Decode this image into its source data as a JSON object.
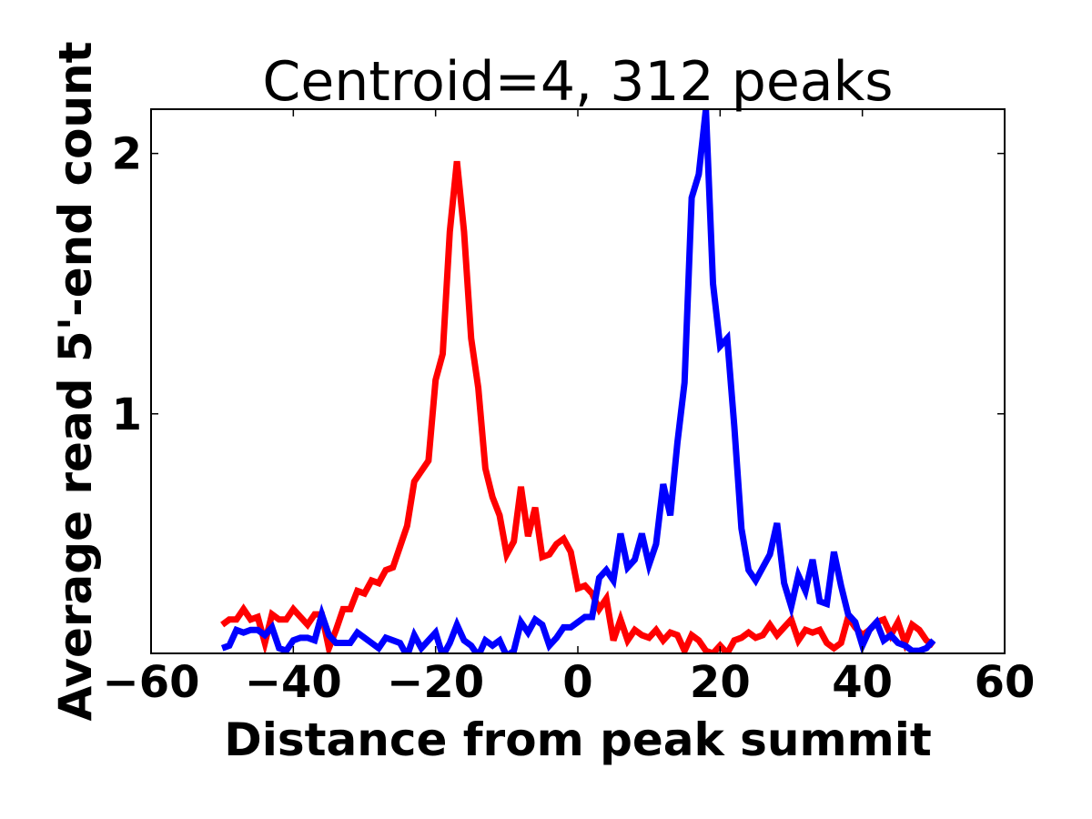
{
  "chart_data": {
    "type": "line",
    "title": "Centroid=4, 312 peaks",
    "xlabel": "Distance from peak summit",
    "ylabel": "Average read 5'-end count",
    "xlim": [
      -60,
      60
    ],
    "ylim": [
      0.08,
      2.17
    ],
    "x_ticks": [
      -60,
      -40,
      -20,
      0,
      20,
      40,
      60
    ],
    "x_tick_labels": [
      "−60",
      "−40",
      "−20",
      "0",
      "20",
      "40",
      "60"
    ],
    "y_ticks": [
      1,
      2
    ],
    "y_tick_labels": [
      "1",
      "2"
    ],
    "grid": false,
    "legend": "none",
    "x": [
      -50,
      -49,
      -48,
      -47,
      -46,
      -45,
      -44,
      -43,
      -42,
      -41,
      -40,
      -39,
      -38,
      -37,
      -36,
      -35,
      -34,
      -33,
      -32,
      -31,
      -30,
      -29,
      -28,
      -27,
      -26,
      -25,
      -24,
      -23,
      -22,
      -21,
      -20,
      -19,
      -18,
      -17,
      -16,
      -15,
      -14,
      -13,
      -12,
      -11,
      -10,
      -9,
      -8,
      -7,
      -6,
      -5,
      -4,
      -3,
      -2,
      -1,
      0,
      1,
      2,
      3,
      4,
      5,
      6,
      7,
      8,
      9,
      10,
      11,
      12,
      13,
      14,
      15,
      16,
      17,
      18,
      19,
      20,
      21,
      22,
      23,
      24,
      25,
      26,
      27,
      28,
      29,
      30,
      31,
      32,
      33,
      34,
      35,
      36,
      37,
      38,
      39,
      40,
      41,
      42,
      43,
      44,
      45,
      46,
      47,
      48,
      49,
      50
    ],
    "series": [
      {
        "color": "#ff0000",
        "values": [
          0.19,
          0.21,
          0.21,
          0.25,
          0.21,
          0.22,
          0.12,
          0.23,
          0.21,
          0.21,
          0.25,
          0.22,
          0.19,
          0.23,
          0.23,
          0.1,
          0.17,
          0.25,
          0.25,
          0.32,
          0.31,
          0.36,
          0.35,
          0.4,
          0.41,
          0.49,
          0.57,
          0.74,
          0.78,
          0.82,
          1.13,
          1.23,
          1.7,
          1.97,
          1.7,
          1.29,
          1.1,
          0.79,
          0.68,
          0.61,
          0.46,
          0.51,
          0.72,
          0.53,
          0.64,
          0.45,
          0.46,
          0.5,
          0.52,
          0.47,
          0.33,
          0.34,
          0.31,
          0.25,
          0.29,
          0.13,
          0.21,
          0.13,
          0.17,
          0.15,
          0.14,
          0.17,
          0.13,
          0.16,
          0.15,
          0.09,
          0.15,
          0.13,
          0.09,
          0.08,
          0.11,
          0.08,
          0.13,
          0.14,
          0.16,
          0.14,
          0.15,
          0.19,
          0.15,
          0.18,
          0.21,
          0.13,
          0.17,
          0.16,
          0.17,
          0.12,
          0.1,
          0.12,
          0.22,
          0.18,
          0.15,
          0.17,
          0.2,
          0.21,
          0.15,
          0.2,
          0.12,
          0.19,
          0.17,
          0.13,
          0.11
        ]
      },
      {
        "color": "#0000ff",
        "values": [
          0.1,
          0.11,
          0.17,
          0.16,
          0.17,
          0.17,
          0.15,
          0.18,
          0.1,
          0.09,
          0.13,
          0.14,
          0.14,
          0.13,
          0.23,
          0.15,
          0.12,
          0.12,
          0.12,
          0.16,
          0.14,
          0.12,
          0.1,
          0.14,
          0.13,
          0.12,
          0.07,
          0.15,
          0.1,
          0.13,
          0.16,
          0.07,
          0.12,
          0.19,
          0.13,
          0.11,
          0.07,
          0.13,
          0.11,
          0.13,
          0.07,
          0.09,
          0.2,
          0.16,
          0.21,
          0.19,
          0.11,
          0.14,
          0.18,
          0.18,
          0.2,
          0.22,
          0.22,
          0.37,
          0.4,
          0.36,
          0.54,
          0.41,
          0.44,
          0.54,
          0.42,
          0.5,
          0.73,
          0.61,
          0.89,
          1.12,
          1.83,
          1.92,
          2.17,
          1.5,
          1.26,
          1.29,
          0.95,
          0.56,
          0.4,
          0.36,
          0.41,
          0.46,
          0.58,
          0.35,
          0.26,
          0.38,
          0.32,
          0.44,
          0.28,
          0.27,
          0.47,
          0.34,
          0.23,
          0.2,
          0.11,
          0.17,
          0.2,
          0.13,
          0.15,
          0.12,
          0.11,
          0.09,
          0.09,
          0.1,
          0.13
        ]
      }
    ]
  }
}
